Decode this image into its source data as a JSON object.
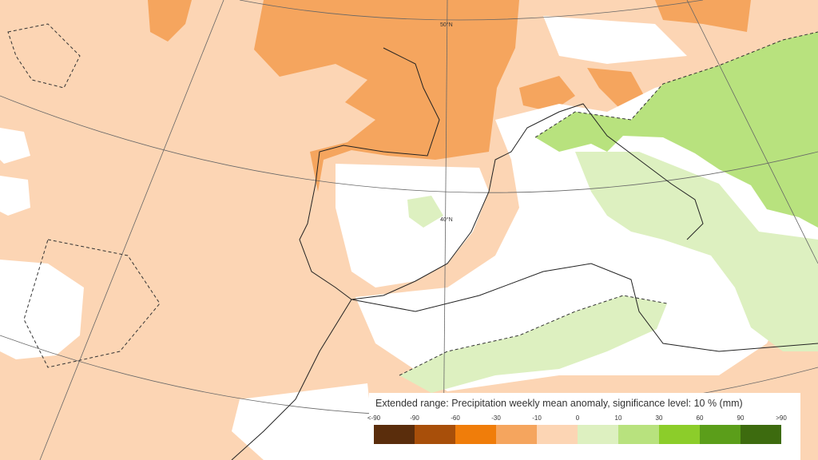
{
  "map": {
    "parallels": [
      "50°N",
      "40°N"
    ],
    "legend": {
      "title": "Extended range: Precipitation weekly mean anomaly, significance level: 10 % (mm)",
      "labels": [
        "<-90",
        "-90",
        "-60",
        "-30",
        "-10",
        "0",
        "10",
        "30",
        "60",
        "90",
        ">90"
      ],
      "colors": [
        "#5a2d0c",
        "#a84f0a",
        "#f07d0a",
        "#f5a55e",
        "#fcd5b4",
        "#ddf0c0",
        "#b8e27e",
        "#8ccd2a",
        "#5b9e1a",
        "#3d6b0f"
      ]
    }
  }
}
